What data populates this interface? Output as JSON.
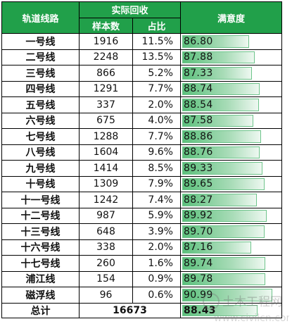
{
  "header": {
    "line_label": "轨道线路",
    "group_label": "实际回收",
    "samples_label": "样本数",
    "share_label": "占比",
    "satisfaction_label": "满意度"
  },
  "rows": [
    {
      "line": "一号线",
      "samples": "1916",
      "share": "11.5%",
      "satisfaction": "86.80",
      "bar_fraction": 0.7
    },
    {
      "line": "二号线",
      "samples": "2248",
      "share": "13.5%",
      "satisfaction": "87.88",
      "bar_fraction": 0.76
    },
    {
      "line": "三号线",
      "samples": "866",
      "share": "5.2%",
      "satisfaction": "87.33",
      "bar_fraction": 0.73
    },
    {
      "line": "四号线",
      "samples": "1291",
      "share": "7.7%",
      "satisfaction": "88.74",
      "bar_fraction": 0.81
    },
    {
      "line": "五号线",
      "samples": "337",
      "share": "2.0%",
      "satisfaction": "88.54",
      "bar_fraction": 0.8
    },
    {
      "line": "六号线",
      "samples": "675",
      "share": "4.0%",
      "satisfaction": "87.58",
      "bar_fraction": 0.74
    },
    {
      "line": "七号线",
      "samples": "1288",
      "share": "7.7%",
      "satisfaction": "88.86",
      "bar_fraction": 0.82
    },
    {
      "line": "八号线",
      "samples": "1604",
      "share": "9.6%",
      "satisfaction": "88.76",
      "bar_fraction": 0.81
    },
    {
      "line": "九号线",
      "samples": "1414",
      "share": "8.5%",
      "satisfaction": "89.33",
      "bar_fraction": 0.84
    },
    {
      "line": "十号线",
      "samples": "1309",
      "share": "7.9%",
      "satisfaction": "89.65",
      "bar_fraction": 0.86
    },
    {
      "line": "十一号线",
      "samples": "1242",
      "share": "7.4%",
      "satisfaction": "88.27",
      "bar_fraction": 0.78
    },
    {
      "line": "十二号线",
      "samples": "987",
      "share": "5.9%",
      "satisfaction": "89.92",
      "bar_fraction": 0.88
    },
    {
      "line": "十三号线",
      "samples": "648",
      "share": "3.9%",
      "satisfaction": "89.70",
      "bar_fraction": 0.86
    },
    {
      "line": "十六号线",
      "samples": "338",
      "share": "2.0%",
      "satisfaction": "87.16",
      "bar_fraction": 0.72
    },
    {
      "line": "十七号线",
      "samples": "260",
      "share": "1.6%",
      "satisfaction": "89.74",
      "bar_fraction": 0.87
    },
    {
      "line": "浦江线",
      "samples": "154",
      "share": "0.9%",
      "satisfaction": "89.78",
      "bar_fraction": 0.87
    },
    {
      "line": "磁浮线",
      "samples": "96",
      "share": "0.6%",
      "satisfaction": "90.99",
      "bar_fraction": 0.94
    }
  ],
  "total": {
    "label": "总计",
    "samples": "16673",
    "satisfaction": "88.43",
    "bar_fraction": 0.79
  },
  "watermark": {
    "text": "土木工程网",
    "url_text": "www.civilcn.com"
  },
  "colors": {
    "header_bg": "#21a04a",
    "bar_start": "#5cc07c",
    "bar_end": "#eef8f1"
  }
}
